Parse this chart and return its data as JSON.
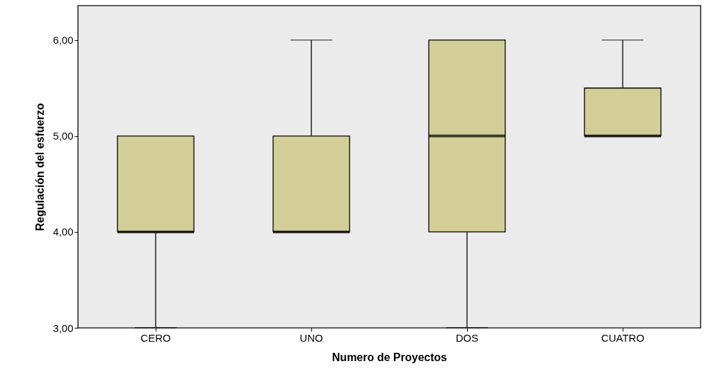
{
  "chart_data": {
    "type": "box",
    "xlabel": "Numero de Proyectos",
    "ylabel": "Regulación del esfuerzo",
    "categories": [
      "CERO",
      "UNO",
      "DOS",
      "CUATRO"
    ],
    "ylim": [
      3,
      6.36
    ],
    "yticks": [
      {
        "value": 3,
        "label": "3,00"
      },
      {
        "value": 4,
        "label": "4,00"
      },
      {
        "value": 5,
        "label": "5,00"
      },
      {
        "value": 6,
        "label": "6,00"
      }
    ],
    "grid": false,
    "series": [
      {
        "color": "#d3ce97",
        "boxes": [
          {
            "low": 3,
            "q1": 4,
            "median": 4,
            "q3": 5,
            "high": 5
          },
          {
            "low": 4,
            "q1": 4,
            "median": 4,
            "q3": 5,
            "high": 6
          },
          {
            "low": 3,
            "q1": 4,
            "median": 5,
            "q3": 6,
            "high": 6
          },
          {
            "low": 5,
            "q1": 5,
            "median": 5,
            "q3": 5.5,
            "high": 6
          }
        ]
      }
    ]
  }
}
